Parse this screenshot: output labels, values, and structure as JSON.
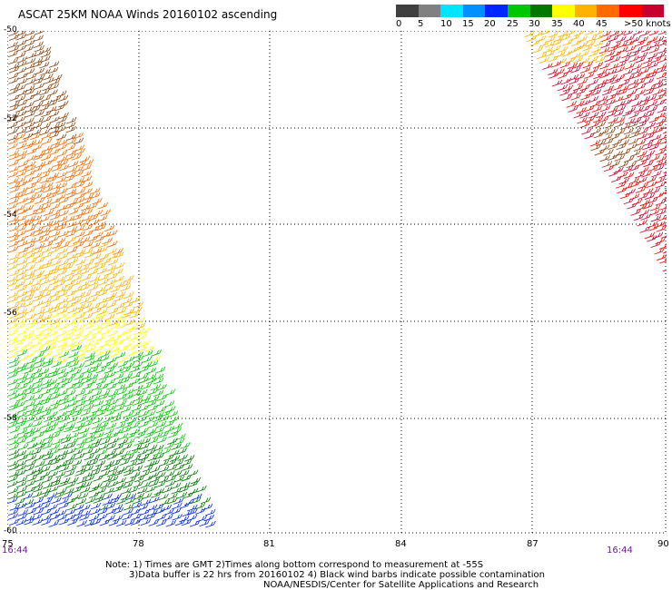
{
  "header": {
    "title": "ASCAT 25KM NOAA Winds 20160102 ascending"
  },
  "legend": {
    "colors": [
      "#404040",
      "#808080",
      "#00e5ff",
      "#0090ff",
      "#0026ff",
      "#00c800",
      "#007800",
      "#ffff00",
      "#ffb300",
      "#ff6a00",
      "#ff0000",
      "#c8002d",
      "#8b4513",
      "#e000e0",
      "#a000ff",
      "#7a00c8",
      "#3a006e"
    ],
    "labels": [
      "0",
      "5",
      "10",
      "15",
      "20",
      "25",
      "30",
      "35",
      "40",
      "45",
      ">50 knots"
    ]
  },
  "axes": {
    "y_labels": [
      "-50",
      "-52",
      "-54",
      "-56",
      "-58",
      "-60"
    ],
    "x_labels": [
      "75",
      "78",
      "81",
      "84",
      "87",
      "90"
    ]
  },
  "times": {
    "left": "16:44",
    "right": "16:44"
  },
  "notes": {
    "line1": "Note: 1) Times are GMT 2)Times along bottom correspond to measurement at -55S",
    "line2": "3)Data buffer is 22 hrs from 20160102 4) Black wind barbs indicate possible contamination",
    "line3": "NOAA/NESDIS/Center for Satellite Applications and Research"
  },
  "swaths": [
    {
      "name": "west",
      "color_band": [
        "#8b4513",
        "#ff6a00",
        "#ffb300",
        "#ffff00",
        "#00c800",
        "#007800",
        "#0026ff"
      ]
    },
    {
      "name": "east",
      "color_band": [
        "#c8002d",
        "#ff0000",
        "#ffb300",
        "#8b4513"
      ]
    }
  ]
}
